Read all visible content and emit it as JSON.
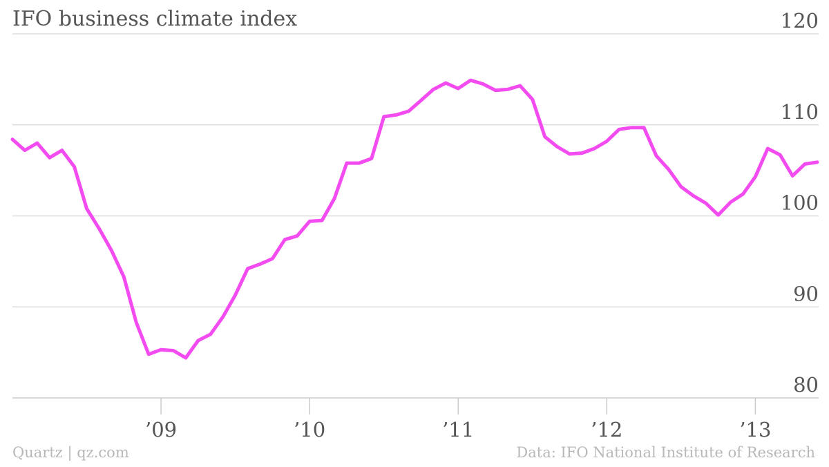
{
  "title": "IFO business climate index",
  "footer": {
    "credit": "Quartz | qz.com",
    "source": "Data: IFO National Institute of Research"
  },
  "colors": {
    "line": "#f24cf0",
    "grid": "#dddddd",
    "text": "#555555",
    "footer": "#b8b8b8"
  },
  "chart_data": {
    "type": "line",
    "title": "IFO business climate index",
    "grid": true,
    "ylim": [
      80,
      120
    ],
    "yticks": [
      80,
      90,
      100,
      110,
      120
    ],
    "xlim": [
      "2008-01",
      "2013-06"
    ],
    "xticks": [
      {
        "x": "2009-01",
        "label": "’09"
      },
      {
        "x": "2010-01",
        "label": "’10"
      },
      {
        "x": "2011-01",
        "label": "’11"
      },
      {
        "x": "2012-01",
        "label": "’12"
      },
      {
        "x": "2013-01",
        "label": "’13"
      }
    ],
    "series": [
      {
        "x": [
          "2008-01",
          "2008-02",
          "2008-03",
          "2008-04",
          "2008-05",
          "2008-06",
          "2008-07",
          "2008-08",
          "2008-09",
          "2008-10",
          "2008-11",
          "2008-12",
          "2009-01",
          "2009-02",
          "2009-03",
          "2009-04",
          "2009-05",
          "2009-06",
          "2009-07",
          "2009-08",
          "2009-09",
          "2009-10",
          "2009-11",
          "2009-12",
          "2010-01",
          "2010-02",
          "2010-03",
          "2010-04",
          "2010-05",
          "2010-06",
          "2010-07",
          "2010-08",
          "2010-09",
          "2010-10",
          "2010-11",
          "2010-12",
          "2011-01",
          "2011-02",
          "2011-03",
          "2011-04",
          "2011-05",
          "2011-06",
          "2011-07",
          "2011-08",
          "2011-09",
          "2011-10",
          "2011-11",
          "2011-12",
          "2012-01",
          "2012-02",
          "2012-03",
          "2012-04",
          "2012-05",
          "2012-06",
          "2012-07",
          "2012-08",
          "2012-09",
          "2012-10",
          "2012-11",
          "2012-12",
          "2013-01",
          "2013-02",
          "2013-03",
          "2013-04",
          "2013-05",
          "2013-06"
        ],
        "values": [
          108.4,
          107.2,
          108.0,
          106.4,
          107.2,
          105.4,
          100.8,
          98.6,
          96.2,
          93.3,
          88.3,
          84.8,
          85.3,
          85.2,
          84.4,
          86.3,
          87.0,
          88.9,
          91.3,
          94.2,
          94.7,
          95.3,
          97.4,
          97.8,
          99.4,
          99.5,
          101.9,
          105.8,
          105.8,
          106.3,
          110.9,
          111.1,
          111.5,
          112.7,
          113.9,
          114.6,
          114.0,
          114.9,
          114.5,
          113.8,
          113.9,
          114.3,
          112.8,
          108.7,
          107.6,
          106.8,
          106.9,
          107.4,
          108.2,
          109.5,
          109.7,
          109.7,
          106.6,
          105.1,
          103.2,
          102.2,
          101.4,
          100.1,
          101.5,
          102.4,
          104.3,
          107.4,
          106.7,
          104.4,
          105.7,
          105.9
        ]
      }
    ]
  }
}
